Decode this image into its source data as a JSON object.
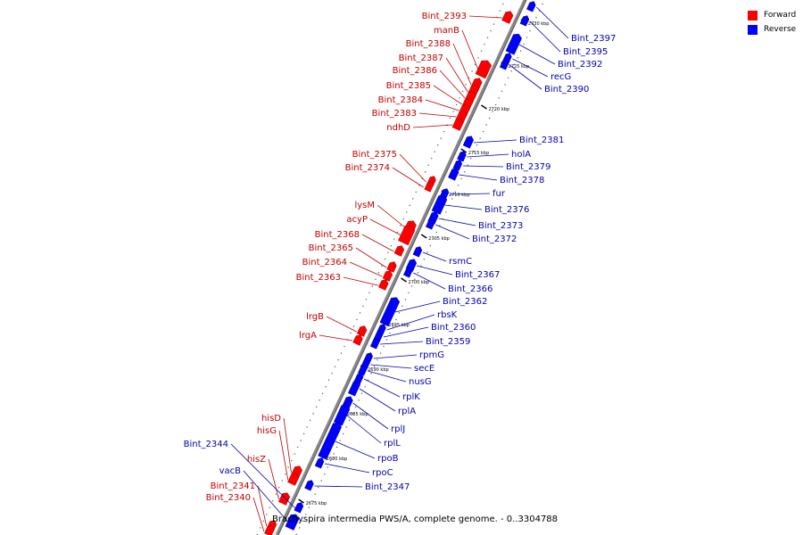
{
  "caption": "Brachyspira intermedia PWS/A, complete genome. - 0..3304788",
  "legend": [
    {
      "label": "Forward",
      "color": "#ff0000"
    },
    {
      "label": "Reverse",
      "color": "#0000ff"
    }
  ],
  "colors": {
    "forward": "#ff0000",
    "reverse": "#0000ff",
    "forward_label": "#c00000",
    "reverse_label": "#0000aa",
    "backbone": "#888888"
  },
  "kbp_ticks": [
    "2675 kbp",
    "2680 kbp",
    "2685 kbp",
    "2690 kbp",
    "2695 kbp",
    "2700 kbp",
    "2705 kbp",
    "2710 kbp",
    "2715 kbp",
    "2720 kbp",
    "2725 kbp",
    "2730 kbp"
  ],
  "forward_genes": [
    "Bint_2393",
    "manB",
    "Bint_2388",
    "Bint_2387",
    "Bint_2386",
    "Bint_2385",
    "Bint_2384",
    "Bint_2383",
    "ndhD",
    "Bint_2375",
    "Bint_2374",
    "lysM",
    "acyP",
    "Bint_2368",
    "Bint_2365",
    "Bint_2364",
    "Bint_2363",
    "lrgB",
    "lrgA",
    "hisD",
    "hisG",
    "hisZ",
    "Bint_2341",
    "Bint_2340"
  ],
  "reverse_genes": [
    "Bint_2397",
    "Bint_2395",
    "Bint_2392",
    "recG",
    "Bint_2390",
    "Bint_2381",
    "holA",
    "Bint_2379",
    "Bint_2378",
    "fur",
    "Bint_2376",
    "Bint_2373",
    "Bint_2372",
    "rsmC",
    "Bint_2367",
    "Bint_2366",
    "Bint_2362",
    "rbsK",
    "Bint_2360",
    "Bint_2359",
    "rpmG",
    "secE",
    "nusG",
    "rplK",
    "rplA",
    "rplJ",
    "rplL",
    "rpoB",
    "rpoC",
    "Bint_2347",
    "Bint_2344",
    "vacB"
  ]
}
